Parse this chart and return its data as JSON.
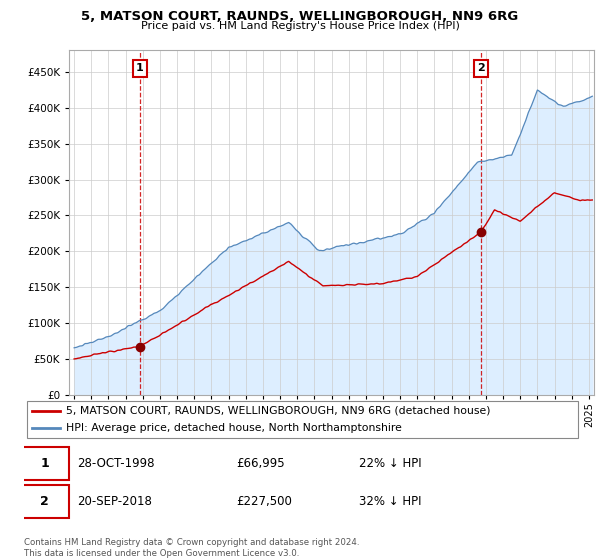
{
  "title1": "5, MATSON COURT, RAUNDS, WELLINGBOROUGH, NN9 6RG",
  "title2": "Price paid vs. HM Land Registry's House Price Index (HPI)",
  "ytick_values": [
    0,
    50000,
    100000,
    150000,
    200000,
    250000,
    300000,
    350000,
    400000,
    450000
  ],
  "xlim": [
    1994.7,
    2025.3
  ],
  "ylim": [
    0,
    480000
  ],
  "sale1_year": 1998.83,
  "sale1_price": 66995,
  "sale2_year": 2018.72,
  "sale2_price": 227500,
  "legend_line1": "5, MATSON COURT, RAUNDS, WELLINGBOROUGH, NN9 6RG (detached house)",
  "legend_line2": "HPI: Average price, detached house, North Northamptonshire",
  "annotation1_date": "28-OCT-1998",
  "annotation1_price": "£66,995",
  "annotation1_hpi": "22% ↓ HPI",
  "annotation2_date": "20-SEP-2018",
  "annotation2_price": "£227,500",
  "annotation2_hpi": "32% ↓ HPI",
  "footer": "Contains HM Land Registry data © Crown copyright and database right 2024.\nThis data is licensed under the Open Government Licence v3.0.",
  "line_red": "#cc0000",
  "line_blue": "#5588bb",
  "fill_blue": "#ddeeff",
  "bg_color": "#ffffff",
  "grid_color": "#cccccc"
}
